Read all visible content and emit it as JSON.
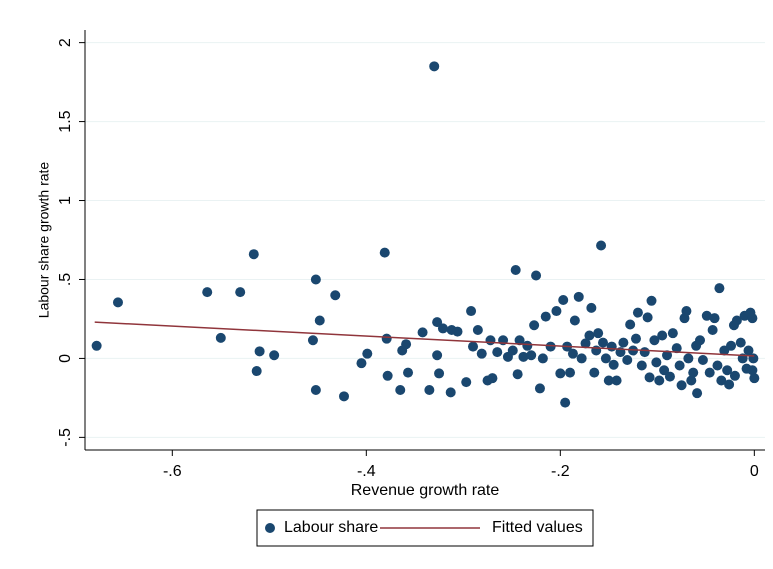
{
  "chart_data": {
    "type": "scatter",
    "x_label": "Revenue growth rate",
    "y_label": "Labour share growth rate",
    "xlim": [
      -0.69,
      0.011
    ],
    "ylim": [
      -0.58,
      2.08
    ],
    "xticks": [
      {
        "value": -0.6,
        "label": "-.6"
      },
      {
        "value": -0.4,
        "label": "-.4"
      },
      {
        "value": -0.2,
        "label": "-.2"
      },
      0
    ],
    "yticks": [
      {
        "value": -0.5,
        "label": "-.5"
      },
      0,
      {
        "value": 0.5,
        "label": ".5"
      },
      1,
      1.5,
      2
    ],
    "grid": true,
    "legend": "bottom",
    "series": [
      {
        "name": "Labour share",
        "type": "scatter",
        "color": "#1a476f",
        "x": [
          -0.678,
          -0.656,
          -0.564,
          -0.55,
          -0.53,
          -0.516,
          -0.513,
          -0.51,
          -0.495,
          -0.452,
          -0.448,
          -0.455,
          -0.452,
          -0.432,
          -0.423,
          -0.405,
          -0.399,
          -0.381,
          -0.379,
          -0.378,
          -0.365,
          -0.363,
          -0.359,
          -0.357,
          -0.342,
          -0.335,
          -0.33,
          -0.327,
          -0.327,
          -0.325,
          -0.321,
          -0.312,
          -0.313,
          -0.306,
          -0.297,
          -0.292,
          -0.29,
          -0.285,
          -0.281,
          -0.275,
          -0.272,
          -0.27,
          -0.265,
          -0.259,
          -0.254,
          -0.249,
          -0.246,
          -0.244,
          -0.242,
          -0.238,
          -0.234,
          -0.23,
          -0.227,
          -0.225,
          -0.221,
          -0.218,
          -0.215,
          -0.21,
          -0.204,
          -0.2,
          -0.197,
          -0.195,
          -0.193,
          -0.19,
          -0.187,
          -0.185,
          -0.181,
          -0.178,
          -0.174,
          -0.17,
          -0.168,
          -0.165,
          -0.163,
          -0.161,
          -0.158,
          -0.156,
          -0.153,
          -0.15,
          -0.147,
          -0.145,
          -0.142,
          -0.138,
          -0.135,
          -0.131,
          -0.128,
          -0.125,
          -0.122,
          -0.12,
          -0.116,
          -0.113,
          -0.11,
          -0.108,
          -0.106,
          -0.103,
          -0.101,
          -0.098,
          -0.095,
          -0.093,
          -0.09,
          -0.087,
          -0.084,
          -0.08,
          -0.077,
          -0.075,
          -0.072,
          -0.07,
          -0.068,
          -0.065,
          -0.063,
          -0.06,
          -0.059,
          -0.056,
          -0.053,
          -0.049,
          -0.046,
          -0.043,
          -0.041,
          -0.038,
          -0.036,
          -0.034,
          -0.031,
          -0.028,
          -0.026,
          -0.024,
          -0.021,
          -0.02,
          -0.018,
          -0.014,
          -0.012,
          -0.01,
          -0.008,
          -0.006,
          -0.004,
          -0.002,
          -0.001,
          -0.002,
          0.0
        ],
        "values": [
          0.08,
          0.355,
          0.42,
          0.13,
          0.42,
          0.66,
          -0.08,
          0.045,
          0.02,
          0.5,
          0.24,
          0.115,
          -0.2,
          0.4,
          -0.24,
          -0.03,
          0.03,
          0.67,
          0.125,
          -0.11,
          -0.2,
          0.05,
          0.09,
          -0.09,
          0.165,
          -0.2,
          1.85,
          0.23,
          0.02,
          -0.095,
          0.19,
          0.18,
          -0.215,
          0.17,
          -0.15,
          0.3,
          0.075,
          0.18,
          0.03,
          -0.14,
          0.115,
          -0.125,
          0.04,
          0.115,
          0.01,
          0.05,
          0.56,
          -0.1,
          0.115,
          0.01,
          0.08,
          0.02,
          0.21,
          0.525,
          -0.19,
          0.0,
          0.265,
          0.075,
          0.3,
          -0.095,
          0.37,
          -0.28,
          0.075,
          -0.09,
          0.03,
          0.24,
          0.39,
          0.0,
          0.095,
          0.145,
          0.32,
          -0.09,
          0.05,
          0.16,
          0.715,
          0.1,
          0.0,
          -0.14,
          0.075,
          -0.04,
          -0.14,
          0.04,
          0.1,
          -0.01,
          0.215,
          0.05,
          0.125,
          0.29,
          -0.045,
          0.04,
          0.26,
          -0.12,
          0.365,
          0.115,
          -0.025,
          -0.14,
          0.145,
          -0.075,
          0.02,
          -0.115,
          0.16,
          0.065,
          -0.045,
          -0.17,
          0.255,
          0.3,
          0.0,
          -0.14,
          -0.09,
          0.08,
          -0.22,
          0.115,
          -0.01,
          0.27,
          -0.09,
          0.18,
          0.255,
          -0.045,
          0.445,
          -0.14,
          0.05,
          -0.075,
          -0.165,
          0.08,
          0.21,
          -0.11,
          0.24,
          0.1,
          0.0,
          0.27,
          -0.065,
          0.05,
          0.29,
          -0.075,
          0.0,
          0.255,
          -0.125
        ]
      },
      {
        "name": "Fitted values",
        "type": "line",
        "color": "#90353b",
        "x": [
          -0.68,
          0.0
        ],
        "values": [
          0.23,
          0.015
        ]
      }
    ]
  }
}
